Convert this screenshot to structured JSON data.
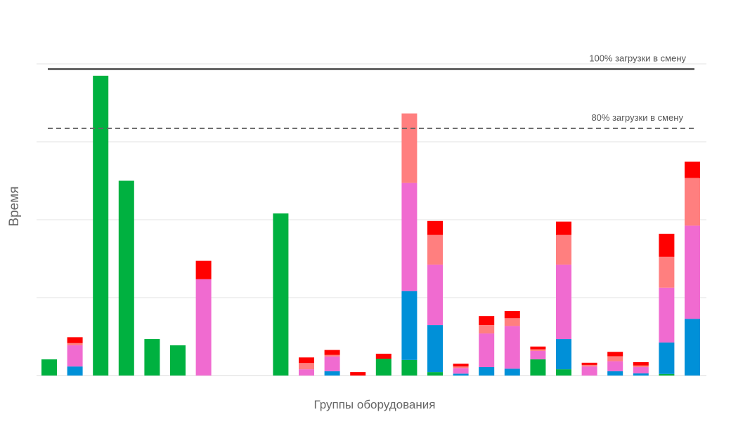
{
  "chart_data": {
    "type": "bar",
    "stacked": true,
    "title": "",
    "xlabel": "Группы оборудования",
    "ylabel": "Время",
    "ylim": [
      0,
      100
    ],
    "grid": true,
    "legend": "none",
    "colors": {
      "green": "#00b140",
      "blue": "#0090d8",
      "pink": "#f06bd0",
      "salmon": "#ff7f7f",
      "red": "#ff0000"
    },
    "reference_lines": [
      {
        "label": "100% загрузки в смену",
        "value": 98.3,
        "style": "solid",
        "color": "#666666"
      },
      {
        "label": "80% загрузки в смену",
        "value": 79.3,
        "style": "dashed",
        "color": "#666666"
      }
    ],
    "bars": [
      {
        "green": 5.2,
        "blue": 0,
        "pink": 0,
        "salmon": 0,
        "red": 0
      },
      {
        "green": 0,
        "blue": 2.9,
        "pink": 6.8,
        "salmon": 0.7,
        "red": 1.9
      },
      {
        "green": 96.2,
        "blue": 0,
        "pink": 0,
        "salmon": 0,
        "red": 0
      },
      {
        "green": 62.5,
        "blue": 0,
        "pink": 0,
        "salmon": 0,
        "red": 0
      },
      {
        "green": 11.7,
        "blue": 0,
        "pink": 0,
        "salmon": 0,
        "red": 0
      },
      {
        "green": 9.7,
        "blue": 0,
        "pink": 0,
        "salmon": 0,
        "red": 0
      },
      {
        "green": 0,
        "blue": 0,
        "pink": 30.9,
        "salmon": 0,
        "red": 5.9
      },
      {
        "green": 0,
        "blue": 0,
        "pink": 0,
        "salmon": 0,
        "red": 0
      },
      {
        "green": 0,
        "blue": 0,
        "pink": 0,
        "salmon": 0,
        "red": 0
      },
      {
        "green": 52.0,
        "blue": 0,
        "pink": 0,
        "salmon": 0,
        "red": 0
      },
      {
        "green": 0,
        "blue": 0,
        "pink": 2.0,
        "salmon": 2.0,
        "red": 1.8
      },
      {
        "green": 0,
        "blue": 1.4,
        "pink": 4.7,
        "salmon": 0.5,
        "red": 1.6
      },
      {
        "green": 0,
        "blue": 0,
        "pink": 0,
        "salmon": 0,
        "red": 1.1
      },
      {
        "green": 5.4,
        "blue": 0,
        "pink": 0,
        "salmon": 0,
        "red": 1.6
      },
      {
        "green": 5.0,
        "blue": 22.1,
        "pink": 34.7,
        "salmon": 22.3,
        "red": 0
      },
      {
        "green": 1.1,
        "blue": 15.1,
        "pink": 19.4,
        "salmon": 9.5,
        "red": 4.5
      },
      {
        "green": 0,
        "blue": 0.6,
        "pink": 1.8,
        "salmon": 0.5,
        "red": 0.9
      },
      {
        "green": 0,
        "blue": 2.7,
        "pink": 10.8,
        "salmon": 2.7,
        "red": 2.9
      },
      {
        "green": 0,
        "blue": 2.2,
        "pink": 13.7,
        "salmon": 2.5,
        "red": 2.3
      },
      {
        "green": 5.2,
        "blue": 0,
        "pink": 2.7,
        "salmon": 0.5,
        "red": 0.9
      },
      {
        "green": 2.0,
        "blue": 9.7,
        "pink": 23.9,
        "salmon": 9.5,
        "red": 4.3
      },
      {
        "green": 0,
        "blue": 0,
        "pink": 2.9,
        "salmon": 0.5,
        "red": 0.7
      },
      {
        "green": 0,
        "blue": 1.4,
        "pink": 3.2,
        "salmon": 1.6,
        "red": 1.4
      },
      {
        "green": 0,
        "blue": 0.7,
        "pink": 2.0,
        "salmon": 0.5,
        "red": 1.1
      },
      {
        "green": 0.5,
        "blue": 10.1,
        "pink": 17.6,
        "salmon": 9.9,
        "red": 7.4
      },
      {
        "green": 0,
        "blue": 18.2,
        "pink": 29.9,
        "salmon": 15.3,
        "red": 5.2
      }
    ]
  }
}
